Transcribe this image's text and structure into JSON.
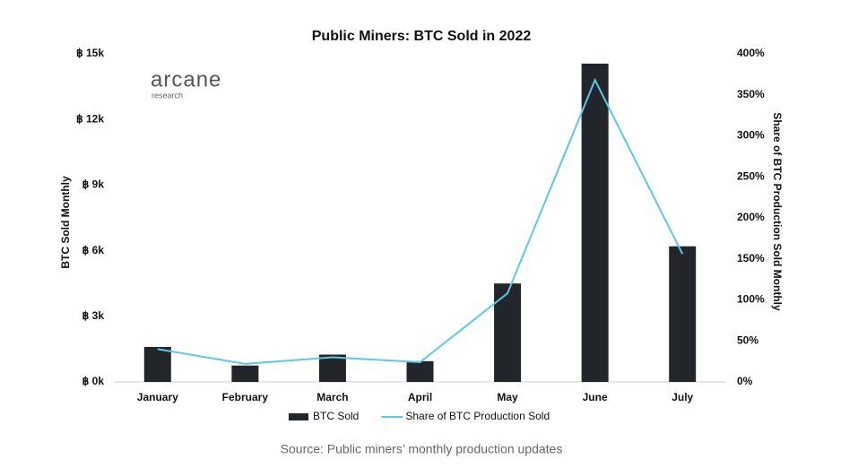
{
  "chart_data": {
    "type": "bar_line",
    "title": "Public Miners: BTC Sold in 2022",
    "logo": {
      "name": "arcane",
      "sub": "research"
    },
    "categories": [
      "January",
      "February",
      "March",
      "April",
      "May",
      "June",
      "July"
    ],
    "series": [
      {
        "name": "BTC Sold",
        "type": "bar",
        "color": "#222529",
        "values": [
          1600,
          750,
          1250,
          950,
          4500,
          14550,
          6200
        ]
      },
      {
        "name": "Share of BTC Production Sold",
        "type": "line",
        "axis": "y2",
        "color": "#5bc8ea",
        "values": [
          40,
          22,
          30,
          24,
          108,
          368,
          156
        ]
      }
    ],
    "ylabel": "BTC Sold Monthly",
    "y2label": "Share of BTC Production Sold Monthly",
    "ylim": [
      0,
      15000
    ],
    "yticks": [
      {
        "value": 0,
        "label": "฿ 0k"
      },
      {
        "value": 3000,
        "label": "฿ 3k"
      },
      {
        "value": 6000,
        "label": "฿ 6k"
      },
      {
        "value": 9000,
        "label": "฿ 9k"
      },
      {
        "value": 12000,
        "label": "฿ 12k"
      },
      {
        "value": 15000,
        "label": "฿ 15k"
      }
    ],
    "y2lim": [
      0,
      400
    ],
    "y2ticks": [
      {
        "value": 0,
        "label": "0%"
      },
      {
        "value": 50,
        "label": "50%"
      },
      {
        "value": 100,
        "label": "100%"
      },
      {
        "value": 150,
        "label": "150%"
      },
      {
        "value": 200,
        "label": "200%"
      },
      {
        "value": 250,
        "label": "250%"
      },
      {
        "value": 300,
        "label": "300%"
      },
      {
        "value": 350,
        "label": "350%"
      },
      {
        "value": 400,
        "label": "400%"
      }
    ],
    "source": "Source: Public miners’ monthly production updates"
  }
}
